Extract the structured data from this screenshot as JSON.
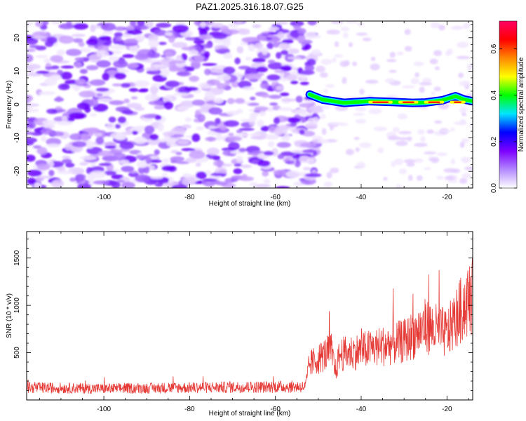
{
  "title": "PAZ1.2025.316.18.07.G25",
  "colors": {
    "snr_line": "#e53935",
    "axes": "#000000",
    "background": "#ffffff"
  },
  "chart_data": [
    {
      "type": "heatmap",
      "name": "spectrogram",
      "title": "",
      "xlabel": "Height of straight line (km)",
      "ylabel": "Frequency (Hz)",
      "xlim": [
        -118,
        -14
      ],
      "ylim": [
        -25,
        25
      ],
      "xticks": [
        -100,
        -80,
        -60,
        -40,
        -20
      ],
      "yticks": [
        -20,
        -10,
        0,
        10,
        20
      ],
      "signal_track": {
        "description": "coherent carrier ridge near 0 Hz",
        "x_start": -52,
        "x_end": -14,
        "frequency_hz": [
          [
            -52,
            3
          ],
          [
            -49,
            1.5
          ],
          [
            -44,
            0.5
          ],
          [
            -38,
            1
          ],
          [
            -33,
            0.8
          ],
          [
            -28,
            0.5
          ],
          [
            -25,
            0.6
          ],
          [
            -21,
            1.3
          ],
          [
            -18,
            2.5
          ],
          [
            -16,
            1.5
          ],
          [
            -14,
            1
          ]
        ]
      },
      "noise_region_x": [
        -118,
        -52
      ],
      "colorbar": {
        "label": "Normalized spectral amplitude",
        "range": [
          0.0,
          0.72
        ],
        "ticks": [
          "0.0",
          "0.2",
          "0.4",
          "0.6"
        ],
        "tick_values": [
          0.0,
          0.2,
          0.4,
          0.6
        ],
        "colormap": [
          "#ffffff",
          "#b388ff",
          "#7c00ff",
          "#0000ff",
          "#00e5ff",
          "#00ff00",
          "#ffff00",
          "#ff8800",
          "#ff0000",
          "#ff0066"
        ]
      }
    },
    {
      "type": "line",
      "name": "snr",
      "title": "",
      "xlabel": "Height of straight line (km)",
      "ylabel": "SNR (10 * v/v)",
      "xlim": [
        -118,
        -14
      ],
      "ylim": [
        0,
        1780
      ],
      "xticks": [
        -100,
        -80,
        -60,
        -40,
        -20
      ],
      "yticks": [
        500,
        1000,
        1500
      ],
      "series": [
        {
          "name": "SNR",
          "trend_x": [
            -118,
            -100,
            -80,
            -60,
            -53,
            -52,
            -47,
            -46,
            -45,
            -40,
            -30,
            -25,
            -20,
            -16,
            -14
          ],
          "trend_y": [
            130,
            120,
            130,
            140,
            140,
            380,
            520,
            300,
            480,
            520,
            620,
            780,
            700,
            1000,
            1100
          ]
        }
      ]
    }
  ]
}
